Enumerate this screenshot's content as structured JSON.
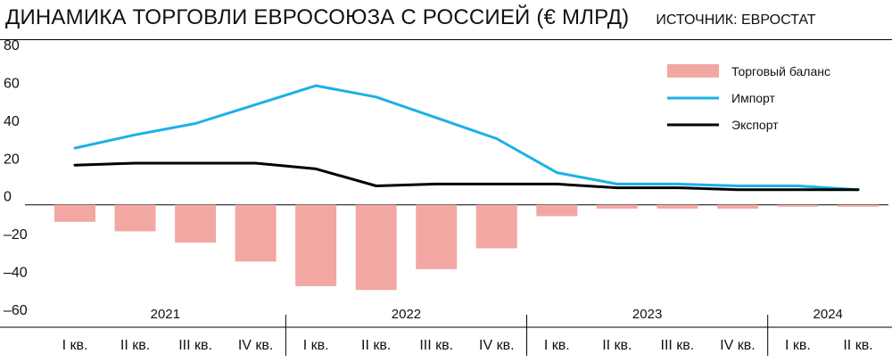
{
  "header": {
    "title": "ДИНАМИКА ТОРГОВЛИ ЕВРОСОЮЗА С РОССИЕЙ (€ МЛРД)",
    "source": "ИСТОЧНИК: ЕВРОСТАТ"
  },
  "chart_data": {
    "type": "bar",
    "categories": [
      "I кв.",
      "II кв.",
      "III кв.",
      "IV кв.",
      "I кв.",
      "II кв.",
      "III кв.",
      "IV кв.",
      "I кв.",
      "II кв.",
      "III кв.",
      "IV кв.",
      "I кв.",
      "II кв."
    ],
    "years": [
      {
        "label": "2021",
        "quarters": 4
      },
      {
        "label": "2022",
        "quarters": 4
      },
      {
        "label": "2023",
        "quarters": 4
      },
      {
        "label": "2024",
        "quarters": 2
      }
    ],
    "series": [
      {
        "name": "Торговый баланс",
        "kind": "bar",
        "color": "#f3a7a3",
        "values": [
          -9,
          -14,
          -20,
          -30,
          -43,
          -45,
          -34,
          -23,
          -6,
          -2,
          -2,
          -2,
          -1,
          -1
        ]
      },
      {
        "name": "Импорт",
        "kind": "line",
        "color": "#1ab1e6",
        "values": [
          30,
          37,
          43,
          53,
          63,
          57,
          46,
          35,
          17,
          11,
          11,
          10,
          10,
          8
        ]
      },
      {
        "name": "Экспорт",
        "kind": "line",
        "color": "#000000",
        "values": [
          21,
          22,
          22,
          22,
          19,
          10,
          11,
          11,
          11,
          9,
          9,
          8,
          8,
          8
        ]
      }
    ],
    "yticks": [
      80,
      60,
      40,
      20,
      0,
      -20,
      -40,
      -60
    ],
    "ytick_labels": [
      "80",
      "60",
      "40",
      "20",
      "0",
      "–20",
      "–40",
      "–60"
    ],
    "ylim": [
      -60,
      80
    ],
    "grid": false,
    "legend_position": "top-right"
  }
}
